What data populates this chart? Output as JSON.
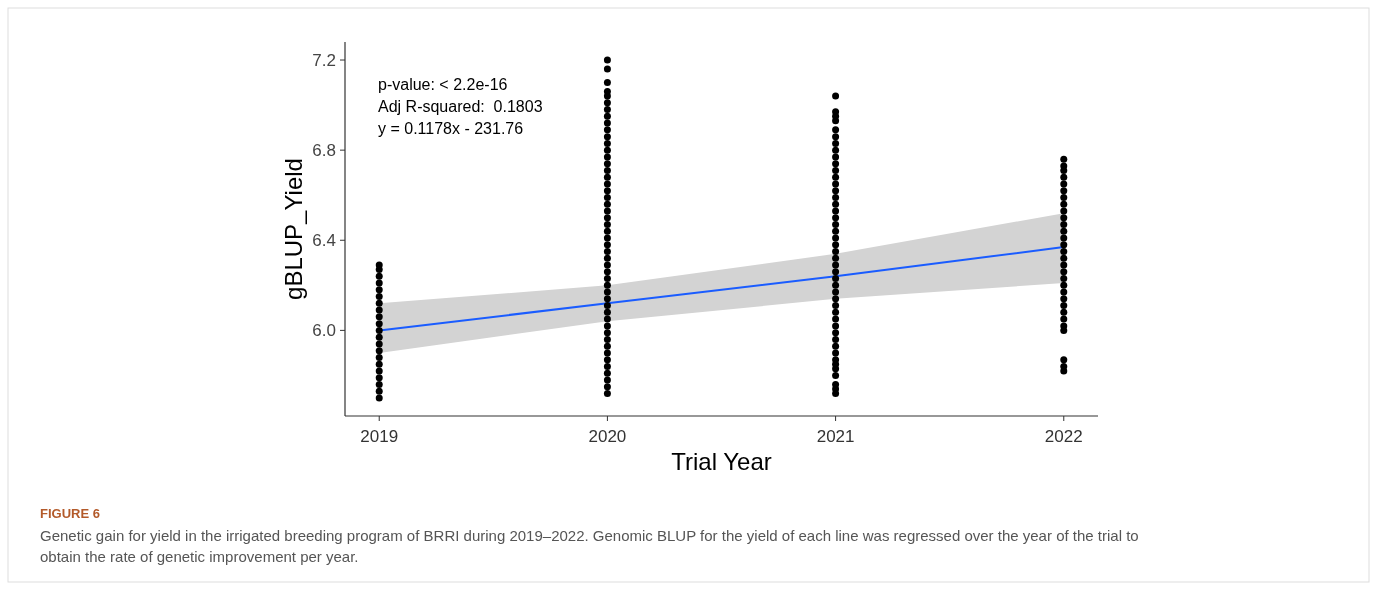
{
  "chart_data": {
    "type": "scatter",
    "xlabel": "Trial Year",
    "ylabel": "gBLUP_Yield",
    "xlim": [
      2018.85,
      2022.15
    ],
    "xticks": [
      2019,
      2020,
      2021,
      2022
    ],
    "ylim": [
      5.62,
      7.28
    ],
    "yticks": [
      {
        "value": 6.0,
        "label": "6.0"
      },
      {
        "value": 6.4,
        "label": "6.4"
      },
      {
        "value": 6.8,
        "label": "6.8"
      },
      {
        "value": 7.2,
        "label": "7.2"
      }
    ],
    "grid": false,
    "marker": "circle",
    "annotations": [
      "p-value: < 2.2e-16",
      "Adj R-squared:  0.1803",
      "y = 0.1178x - 231.76",
      "FIGURE 6",
      "Genetic gain for yield in the irrigated breeding program of BRRI during 2019–2022. Genomic BLUP for the yield of each line was regressed over the year of the trial to obtain the rate of genetic improvement per year."
    ],
    "series": [
      {
        "color": "#000000",
        "x": [
          2019,
          2019,
          2019,
          2019,
          2019,
          2019,
          2019,
          2019,
          2019,
          2019,
          2019,
          2019,
          2019,
          2019,
          2019,
          2019,
          2019,
          2019,
          2019,
          2019,
          2019
        ],
        "values": [
          5.7,
          5.73,
          5.76,
          5.79,
          5.82,
          5.85,
          5.88,
          5.91,
          5.94,
          5.97,
          6.0,
          6.03,
          6.06,
          6.09,
          6.12,
          6.15,
          6.18,
          6.21,
          6.24,
          6.27,
          6.29
        ]
      },
      {
        "color": "#000000",
        "x": [
          2020,
          2020,
          2020,
          2020,
          2020,
          2020,
          2020,
          2020,
          2020,
          2020,
          2020,
          2020,
          2020,
          2020,
          2020,
          2020,
          2020,
          2020,
          2020,
          2020,
          2020,
          2020,
          2020,
          2020,
          2020,
          2020,
          2020,
          2020,
          2020,
          2020,
          2020,
          2020,
          2020,
          2020,
          2020,
          2020,
          2020,
          2020,
          2020,
          2020,
          2020,
          2020,
          2020,
          2020,
          2020,
          2020,
          2020,
          2020,
          2020
        ],
        "values": [
          7.2,
          7.16,
          7.1,
          7.06,
          7.04,
          7.01,
          6.98,
          6.95,
          6.92,
          6.89,
          6.86,
          6.83,
          6.8,
          6.77,
          6.74,
          6.71,
          6.68,
          6.65,
          6.62,
          6.59,
          6.56,
          6.53,
          6.5,
          6.47,
          6.44,
          6.41,
          6.38,
          6.35,
          6.32,
          6.29,
          6.26,
          6.23,
          6.2,
          6.17,
          6.14,
          6.11,
          6.08,
          6.05,
          6.02,
          5.99,
          5.96,
          5.93,
          5.9,
          5.87,
          5.84,
          5.81,
          5.78,
          5.75,
          5.72
        ]
      },
      {
        "color": "#000000",
        "x": [
          2021,
          2021,
          2021,
          2021,
          2021,
          2021,
          2021,
          2021,
          2021,
          2021,
          2021,
          2021,
          2021,
          2021,
          2021,
          2021,
          2021,
          2021,
          2021,
          2021,
          2021,
          2021,
          2021,
          2021,
          2021,
          2021,
          2021,
          2021,
          2021,
          2021,
          2021,
          2021,
          2021,
          2021,
          2021,
          2021,
          2021,
          2021,
          2021,
          2021,
          2021,
          2021,
          2021,
          2021,
          2021
        ],
        "values": [
          7.04,
          6.97,
          6.95,
          6.93,
          6.89,
          6.86,
          6.83,
          6.8,
          6.77,
          6.74,
          6.71,
          6.68,
          6.65,
          6.62,
          6.59,
          6.56,
          6.53,
          6.5,
          6.47,
          6.44,
          6.41,
          6.38,
          6.35,
          6.32,
          6.29,
          6.26,
          6.23,
          6.2,
          6.17,
          6.14,
          6.11,
          6.08,
          6.05,
          6.02,
          5.99,
          5.96,
          5.93,
          5.9,
          5.87,
          5.85,
          5.83,
          5.8,
          5.76,
          5.74,
          5.72
        ]
      },
      {
        "color": "#000000",
        "x": [
          2022,
          2022,
          2022,
          2022,
          2022,
          2022,
          2022,
          2022,
          2022,
          2022,
          2022,
          2022,
          2022,
          2022,
          2022,
          2022,
          2022,
          2022,
          2022,
          2022,
          2022,
          2022,
          2022,
          2022,
          2022,
          2022,
          2022,
          2022,
          2022,
          2022
        ],
        "values": [
          6.76,
          6.73,
          6.71,
          6.68,
          6.65,
          6.62,
          6.59,
          6.56,
          6.53,
          6.5,
          6.47,
          6.44,
          6.41,
          6.38,
          6.35,
          6.32,
          6.29,
          6.26,
          6.23,
          6.2,
          6.17,
          6.14,
          6.11,
          6.08,
          6.05,
          6.02,
          6.0,
          5.87,
          5.84,
          5.82
        ]
      },
      {
        "type": "line",
        "marker": "none",
        "color": "#1a5cff",
        "x": [
          2019,
          2020,
          2021,
          2022
        ],
        "values": [
          6.0,
          6.12,
          6.24,
          6.37
        ],
        "lower": [
          5.9,
          6.04,
          6.14,
          6.21
        ],
        "upper": [
          6.12,
          6.2,
          6.34,
          6.52
        ]
      }
    ]
  }
}
